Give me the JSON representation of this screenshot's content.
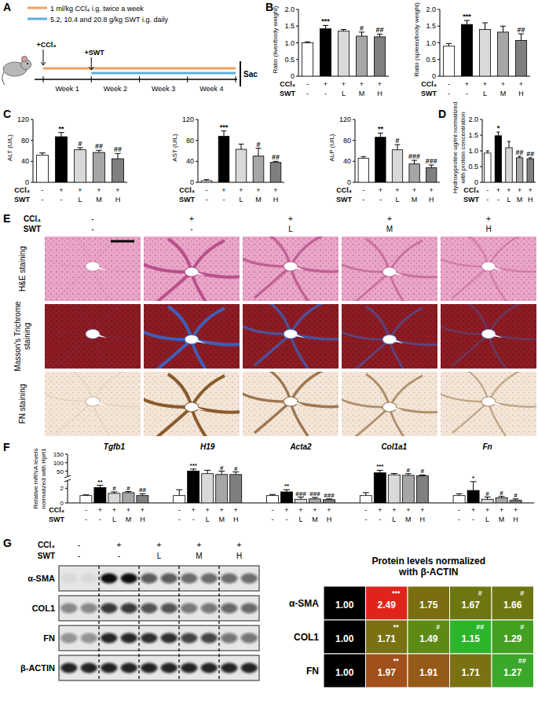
{
  "panel_labels": [
    "A",
    "B",
    "C",
    "D",
    "E",
    "F",
    "G"
  ],
  "scheme": {
    "legend": [
      {
        "label": "1 ml/kg CCl₄ i.g. twice a week",
        "color": "#f0a060"
      },
      {
        "label": "5.2, 10.4 and 20.8 g/kg SWT i.g. daily",
        "color": "#5aaee0"
      }
    ],
    "start_labels": [
      "+CCl₄",
      "+SWT"
    ],
    "weeks": [
      "Week 1",
      "Week 2",
      "Week 3",
      "Week 4"
    ],
    "end_label": "Sac"
  },
  "chart_data": [
    {
      "type": "bar",
      "ylabel": "Ratio (liver/body weight)",
      "treatments": [
        {
          "label": "CCl₄",
          "values": [
            "-",
            "+",
            "+",
            "+",
            "+"
          ]
        },
        {
          "label": "SWT",
          "values": [
            "-",
            "-",
            "L",
            "M",
            "H"
          ]
        }
      ],
      "values": [
        1,
        1.42,
        1.35,
        1.2,
        1.18
      ],
      "errors": [
        0.03,
        0.1,
        0.05,
        0.12,
        0.08
      ],
      "annotations": [
        null,
        "***",
        null,
        "#",
        "##"
      ],
      "colors": [
        "#ffffff",
        "#000000",
        "#d9d9d9",
        "#a6a6a6",
        "#7f7f7f"
      ],
      "ylim": [
        0,
        2
      ],
      "yticks": [
        0,
        0.5,
        {
          "value": 1,
          "label": "1.0"
        },
        1.5,
        {
          "value": 2,
          "label": "2.0"
        }
      ]
    },
    {
      "type": "bar",
      "ylabel": "Ratio (spleen/body weight)",
      "treatments": [
        {
          "label": "CCl₄",
          "values": [
            "-",
            "+",
            "+",
            "+",
            "+"
          ]
        },
        {
          "label": "SWT",
          "values": [
            "-",
            "-",
            "L",
            "M",
            "H"
          ]
        }
      ],
      "values": [
        0.9,
        1.55,
        1.4,
        1.32,
        1.07
      ],
      "errors": [
        0.08,
        0.12,
        0.2,
        0.18,
        0.2
      ],
      "annotations": [
        null,
        "***",
        null,
        null,
        "##"
      ],
      "colors": [
        "#ffffff",
        "#000000",
        "#d9d9d9",
        "#a6a6a6",
        "#7f7f7f"
      ],
      "ylim": [
        0,
        2
      ],
      "yticks": [
        0,
        0.5,
        {
          "value": 1,
          "label": "1.0"
        },
        1.5,
        {
          "value": 2,
          "label": "2.0"
        }
      ]
    },
    {
      "type": "bar",
      "ylabel": "ALT (U/L)",
      "treatments": [
        {
          "label": "CCl₄",
          "values": [
            "-",
            "+",
            "+",
            "+",
            "+"
          ]
        },
        {
          "label": "SWT",
          "values": [
            "-",
            "-",
            "L",
            "M",
            "H"
          ]
        }
      ],
      "values": [
        52,
        87,
        62,
        57,
        45
      ],
      "errors": [
        4,
        8,
        4,
        4,
        10
      ],
      "annotations": [
        null,
        "**",
        "#",
        "##",
        "##"
      ],
      "colors": [
        "#ffffff",
        "#000000",
        "#d9d9d9",
        "#a6a6a6",
        "#7f7f7f"
      ],
      "ylim": [
        0,
        120
      ],
      "yticks": [
        0,
        40,
        80,
        120
      ]
    },
    {
      "type": "bar",
      "ylabel": "AST (U/L)",
      "treatments": [
        {
          "label": "CCl₄",
          "values": [
            "-",
            "+",
            "+",
            "+",
            "+"
          ]
        },
        {
          "label": "SWT",
          "values": [
            "-",
            "-",
            "L",
            "M",
            "H"
          ]
        }
      ],
      "values": [
        3,
        88,
        63,
        50,
        38
      ],
      "errors": [
        2,
        10,
        10,
        15,
        2
      ],
      "annotations": [
        null,
        "***",
        null,
        "#",
        "##"
      ],
      "colors": [
        "#ffffff",
        "#000000",
        "#d9d9d9",
        "#a6a6a6",
        "#7f7f7f"
      ],
      "ylim": [
        0,
        120
      ],
      "yticks": [
        0,
        40,
        80,
        120
      ]
    },
    {
      "type": "bar",
      "ylabel": "ALP (U/L)",
      "treatments": [
        {
          "label": "CCl₄",
          "values": [
            "-",
            "+",
            "+",
            "+",
            "+"
          ]
        },
        {
          "label": "SWT",
          "values": [
            "-",
            "-",
            "L",
            "M",
            "H"
          ]
        }
      ],
      "values": [
        46,
        86,
        62,
        35,
        28
      ],
      "errors": [
        3,
        8,
        10,
        7,
        5
      ],
      "annotations": [
        null,
        "**",
        "#",
        "###",
        "###"
      ],
      "colors": [
        "#ffffff",
        "#000000",
        "#d9d9d9",
        "#a6a6a6",
        "#7f7f7f"
      ],
      "ylim": [
        0,
        120
      ],
      "yticks": [
        0,
        40,
        80,
        120
      ]
    },
    {
      "type": "bar",
      "ylabel": "Hydroxyproline ug/ml normalized with protein concentration",
      "treatments": [
        {
          "label": "CCl₄",
          "values": [
            "-",
            "+",
            "+",
            "+",
            "+"
          ]
        },
        {
          "label": "SWT",
          "values": [
            "-",
            "-",
            "L",
            "M",
            "H"
          ]
        }
      ],
      "values": [
        0.93,
        1.48,
        1.1,
        0.78,
        0.75
      ],
      "errors": [
        0.07,
        0.12,
        0.2,
        0.05,
        0.03
      ],
      "annotations": [
        null,
        "*",
        null,
        "##",
        "##"
      ],
      "colors": [
        "#ffffff",
        "#000000",
        "#d9d9d9",
        "#a6a6a6",
        "#7f7f7f"
      ],
      "ylim": [
        0,
        2
      ],
      "yticks": [
        0,
        0.5,
        {
          "value": 1,
          "label": "1.0"
        },
        1.5,
        {
          "value": 2,
          "label": "2.0"
        }
      ]
    },
    {
      "type": "bar",
      "ylabel": "Relative mRNA levels normalized with Hprt1",
      "categories": [
        "Tgfb1",
        "H19",
        "Acta2",
        "Col1a1",
        "Fn"
      ],
      "treatments": [
        {
          "label": "CCl₄",
          "values": [
            "-",
            "+",
            "+",
            "+",
            "+"
          ]
        },
        {
          "label": "SWT",
          "values": [
            "-",
            "-",
            "L",
            "M",
            "H"
          ]
        }
      ],
      "series": [
        {
          "color": "#ffffff",
          "values": [
            1,
            1,
            1,
            1,
            1
          ],
          "errors": [
            0.1,
            0.8,
            0.15,
            0.4,
            0.25
          ],
          "annotations": [
            null,
            null,
            null,
            null,
            null
          ]
        },
        {
          "color": "#000000",
          "values": [
            2.1,
            50,
            1.5,
            40,
            1.7
          ],
          "errors": [
            0.3,
            12,
            0.3,
            15,
            1.2
          ],
          "annotations": [
            "**",
            "***",
            "**",
            "***",
            "*"
          ]
        },
        {
          "color": "#d9d9d9",
          "values": [
            1.3,
            35,
            0.5,
            28,
            0.5
          ],
          "errors": [
            0.2,
            20,
            0.3,
            8,
            0.3
          ],
          "annotations": [
            "#",
            null,
            "###",
            null,
            "#"
          ]
        },
        {
          "color": "#a6a6a6",
          "values": [
            1.4,
            30,
            0.55,
            25,
            0.7
          ],
          "errors": [
            0.15,
            20,
            0.2,
            10,
            0.2
          ],
          "annotations": [
            "#",
            "#",
            "###",
            "#",
            "#"
          ]
        },
        {
          "color": "#7f7f7f",
          "values": [
            1,
            30,
            0.45,
            22,
            0.35
          ],
          "errors": [
            0.25,
            15,
            0.1,
            5,
            0.2
          ],
          "annotations": [
            "##",
            "#",
            "###",
            "#",
            "#"
          ]
        }
      ],
      "ylim": [
        0,
        150
      ],
      "axis_break": [
        3,
        20
      ],
      "yticks": [
        0,
        2,
        50,
        100,
        150
      ]
    },
    {
      "type": "heatmap",
      "title": "Protein levels normalized with β-ACTIN",
      "rows": [
        "α-SMA",
        "COL1",
        "FN"
      ],
      "values": [
        [
          1,
          2.49,
          1.75,
          1.67,
          1.66
        ],
        [
          1,
          1.71,
          1.49,
          1.15,
          1.29
        ],
        [
          1,
          1.97,
          1.91,
          1.71,
          1.27
        ]
      ],
      "value_labels": [
        [
          "1.00",
          "2.49",
          "1.75",
          "1.67",
          "1.66"
        ],
        [
          "1.00",
          "1.71",
          "1.49",
          "1.15",
          "1.29"
        ],
        [
          "1.00",
          "1.97",
          "1.91",
          "1.71",
          "1.27"
        ]
      ],
      "annotations": [
        [
          null,
          "***",
          null,
          "#",
          "#"
        ],
        [
          null,
          "**",
          "#",
          "##",
          "#"
        ],
        [
          null,
          "**",
          null,
          null,
          "##"
        ]
      ],
      "colors": [
        [
          "#000000",
          "#e0241c",
          "#7a6e10",
          "#6e7612",
          "#6e7612"
        ],
        [
          "#000000",
          "#7a7212",
          "#5c8a14",
          "#2bb52b",
          "#44a020"
        ],
        [
          "#000000",
          "#a0501a",
          "#955a18",
          "#7a7212",
          "#3aa82a"
        ]
      ]
    }
  ],
  "histology": {
    "treatments": [
      {
        "label": "CCl₄",
        "values": [
          "-",
          "+",
          "+",
          "+",
          "+"
        ]
      },
      {
        "label": "SWT",
        "values": [
          "-",
          "-",
          "L",
          "M",
          "H"
        ]
      }
    ],
    "rows": [
      "H&E staining",
      "Masson's Trichrome staining",
      "FN staining"
    ]
  },
  "blot": {
    "treatments": [
      {
        "label": "CCl₄",
        "values": [
          "-",
          "+",
          "+",
          "+",
          "+"
        ]
      },
      {
        "label": "SWT",
        "values": [
          "-",
          "-",
          "L",
          "M",
          "H"
        ]
      }
    ],
    "rows": [
      "α-SMA",
      "COL1",
      "FN",
      "β-ACTIN"
    ]
  }
}
